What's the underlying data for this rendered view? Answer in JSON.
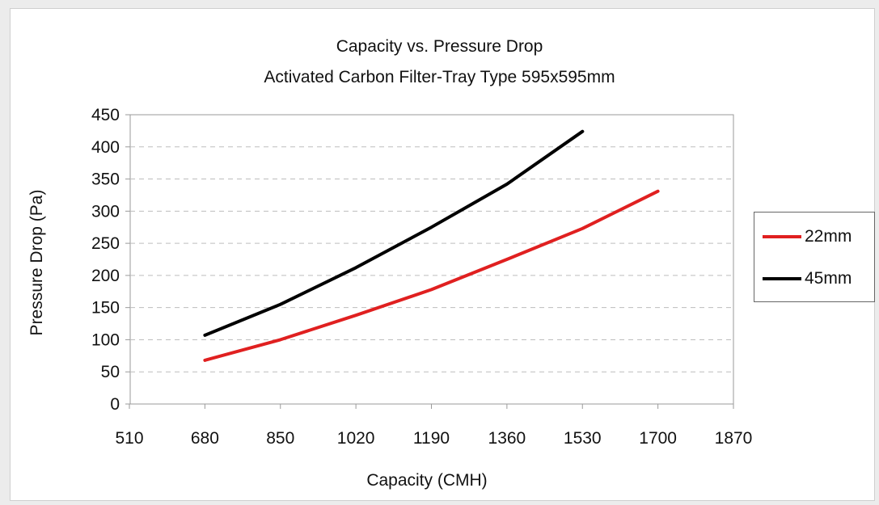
{
  "chart_data": {
    "type": "line",
    "title": "Capacity vs. Pressure Drop",
    "subtitle": "Activated Carbon Filter-Tray Type 595x595mm",
    "xlabel": "Capacity (CMH)",
    "ylabel": "Pressure Drop (Pa)",
    "xlim": [
      510,
      1870
    ],
    "ylim": [
      0,
      450
    ],
    "xticks": [
      510,
      680,
      850,
      1020,
      1190,
      1360,
      1530,
      1700,
      1870
    ],
    "yticks": [
      0,
      50,
      100,
      150,
      200,
      250,
      300,
      350,
      400,
      450
    ],
    "grid": "horizontal-dashed",
    "legend_position": "right",
    "series": [
      {
        "name": "22mm",
        "color": "#e02020",
        "x": [
          680,
          850,
          1020,
          1190,
          1360,
          1530,
          1700
        ],
        "y": [
          68,
          100,
          138,
          178,
          225,
          273,
          331
        ]
      },
      {
        "name": "45mm",
        "color": "#000000",
        "x": [
          680,
          850,
          1020,
          1190,
          1360,
          1530
        ],
        "y": [
          107,
          155,
          212,
          275,
          342,
          424
        ]
      }
    ]
  }
}
